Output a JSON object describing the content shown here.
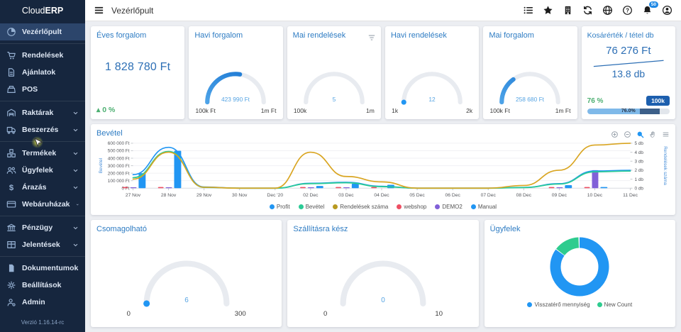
{
  "brand": {
    "cloud": "Cloud",
    "erp": "ERP"
  },
  "sidebar": {
    "items": [
      {
        "label": "Vezérlőpult",
        "icon": "dashboard-icon",
        "active": true
      },
      {
        "label": "Rendelések",
        "icon": "orders-icon",
        "divider": true
      },
      {
        "label": "Ajánlatok",
        "icon": "quotes-icon"
      },
      {
        "label": "POS",
        "icon": "pos-icon"
      },
      {
        "label": "Raktárak",
        "icon": "warehouse-icon",
        "chevron": true,
        "divider": true
      },
      {
        "label": "Beszerzés",
        "icon": "procurement-icon",
        "chevron": true
      },
      {
        "label": "Termékek",
        "icon": "products-icon",
        "chevron": true,
        "divider": true,
        "cursor": true
      },
      {
        "label": "Ügyfelek",
        "icon": "customers-icon",
        "chevron": true
      },
      {
        "label": "Árazás",
        "icon": "pricing-icon",
        "chevron": true
      },
      {
        "label": "Webáruházak",
        "icon": "webshop-icon",
        "chevron": true
      },
      {
        "label": "Pénzügy",
        "icon": "finance-icon",
        "chevron": true,
        "divider": true
      },
      {
        "label": "Jelentések",
        "icon": "reports-icon",
        "chevron": true
      },
      {
        "label": "Dokumentumok",
        "icon": "documents-icon",
        "chevron": true,
        "divider": true
      },
      {
        "label": "Beállítások",
        "icon": "settings-icon"
      },
      {
        "label": "Admin",
        "icon": "admin-icon"
      }
    ],
    "version": "Verzió 1.16.14-rc"
  },
  "topbar": {
    "title": "Vezérlőpult",
    "icons": [
      {
        "name": "checklist-icon"
      },
      {
        "name": "star-icon"
      },
      {
        "name": "building-icon"
      },
      {
        "name": "refresh-icon"
      },
      {
        "name": "globe-icon"
      },
      {
        "name": "help-icon"
      },
      {
        "name": "bell-icon",
        "badge": "50"
      },
      {
        "name": "user-icon"
      }
    ]
  },
  "cards": {
    "yearly": {
      "title": "Éves forgalom",
      "value": "1 828 780 Ft",
      "trend_arrow": "▴",
      "trend": "0 %"
    },
    "monthly": {
      "title": "Havi forgalom",
      "value": "423 990 Ft",
      "min": "100k Ft",
      "max": "1m Ft",
      "fill": 0.55,
      "dot": false
    },
    "today_orders": {
      "title": "Mai rendelések",
      "value": "5",
      "min": "100k",
      "max": "1m",
      "fill": 0,
      "dot": false
    },
    "monthly_orders": {
      "title": "Havi rendelések",
      "value": "12",
      "min": "1k",
      "max": "2k",
      "fill": 0,
      "dot": true
    },
    "today_revenue": {
      "title": "Mai forgalom",
      "value": "258 680 Ft",
      "min": "100k Ft",
      "max": "1m Ft",
      "fill": 0.3,
      "dot": false
    },
    "basket": {
      "title": "Kosárérték / tétel db",
      "value1": "76 276 Ft",
      "value2": "13.8 db",
      "percent": "76 %",
      "badge": "100k",
      "bar_label": "76.0%"
    }
  },
  "chart_data": {
    "type": "mixed",
    "title": "Bevétel",
    "x_labels": [
      "27 Nov",
      "28 Nov",
      "29 Nov",
      "30 Nov",
      "Dec '20",
      "02 Dec",
      "03 Dec",
      "04 Dec",
      "05 Dec",
      "06 Dec",
      "07 Dec",
      "08 Dec",
      "09 Dec",
      "10 Dec",
      "11 Dec"
    ],
    "y_left": {
      "label": "Bevétel",
      "max": 600000,
      "ticks": [
        "600 000 Ft",
        "500 000 Ft",
        "400 000 Ft",
        "300 000 Ft",
        "200 000 Ft",
        "100 000 Ft",
        "0 Ft"
      ]
    },
    "y_right": {
      "label": "Rendelések száma",
      "max": 5,
      "ticks": [
        "5 db",
        "4 db",
        "3 db",
        "2 db",
        "1 db",
        "0 db"
      ]
    },
    "line_series": [
      {
        "name": "Profit",
        "color": "#2196f3",
        "axis": "left",
        "values": [
          180000,
          545000,
          15000,
          0,
          0,
          65000,
          78000,
          25000,
          0,
          0,
          0,
          10000,
          60000,
          230000,
          238000
        ]
      },
      {
        "name": "Bevétel",
        "color": "#2bcb96",
        "axis": "left",
        "values": [
          140000,
          490000,
          10000,
          0,
          0,
          60000,
          72000,
          20000,
          0,
          0,
          0,
          8000,
          55000,
          218000,
          228000
        ]
      },
      {
        "name": "Rendelések száma",
        "color": "#d9a521",
        "axis": "right",
        "values": [
          1,
          4,
          0.1,
          0,
          0,
          4,
          1.3,
          0.7,
          0,
          0,
          0,
          0.3,
          2,
          4.8,
          5
        ]
      }
    ],
    "bar_series": [
      {
        "name": "webshop",
        "color": "#ee4f63",
        "values": [
          15000,
          15000,
          0,
          0,
          0,
          15000,
          15000,
          15000,
          0,
          0,
          0,
          0,
          15000,
          15000,
          0
        ]
      },
      {
        "name": "DEMO2",
        "color": "#8160d8",
        "values": [
          12000,
          12000,
          0,
          0,
          0,
          12000,
          12000,
          0,
          0,
          0,
          0,
          0,
          12000,
          240000,
          0
        ]
      },
      {
        "name": "Manual",
        "color": "#2196f3",
        "values": [
          200000,
          500000,
          0,
          0,
          0,
          30000,
          60000,
          45000,
          0,
          0,
          0,
          0,
          40000,
          15000,
          0
        ]
      }
    ],
    "legend": [
      {
        "name": "Profit",
        "color": "#2196f3"
      },
      {
        "name": "Bevétel",
        "color": "#2bcb96"
      },
      {
        "name": "Rendelések száma",
        "color": "#b89a20"
      },
      {
        "name": "webshop",
        "color": "#ee4f63"
      },
      {
        "name": "DEMO2",
        "color": "#8160d8"
      },
      {
        "name": "Manual",
        "color": "#2196f3"
      }
    ],
    "toolbar": [
      "zoom-in-icon",
      "zoom-out-icon",
      "selection-zoom-icon",
      "pan-icon",
      "home-icon",
      "menu-icon"
    ]
  },
  "bottom": {
    "packable": {
      "title": "Csomagolható",
      "value": "6",
      "min": "0",
      "max": "300",
      "fill": 0,
      "dot": true
    },
    "ready": {
      "title": "Szállításra kész",
      "value": "0",
      "min": "0",
      "max": "10",
      "fill": 0,
      "dot": false
    },
    "customers": {
      "title": "Ügyfelek",
      "donut": {
        "slices": [
          {
            "label": "Visszatérő mennyiség",
            "color": "#2196f3",
            "pct": 85
          },
          {
            "label": "New Count",
            "color": "#2ecc8f",
            "pct": 14
          }
        ]
      }
    }
  }
}
